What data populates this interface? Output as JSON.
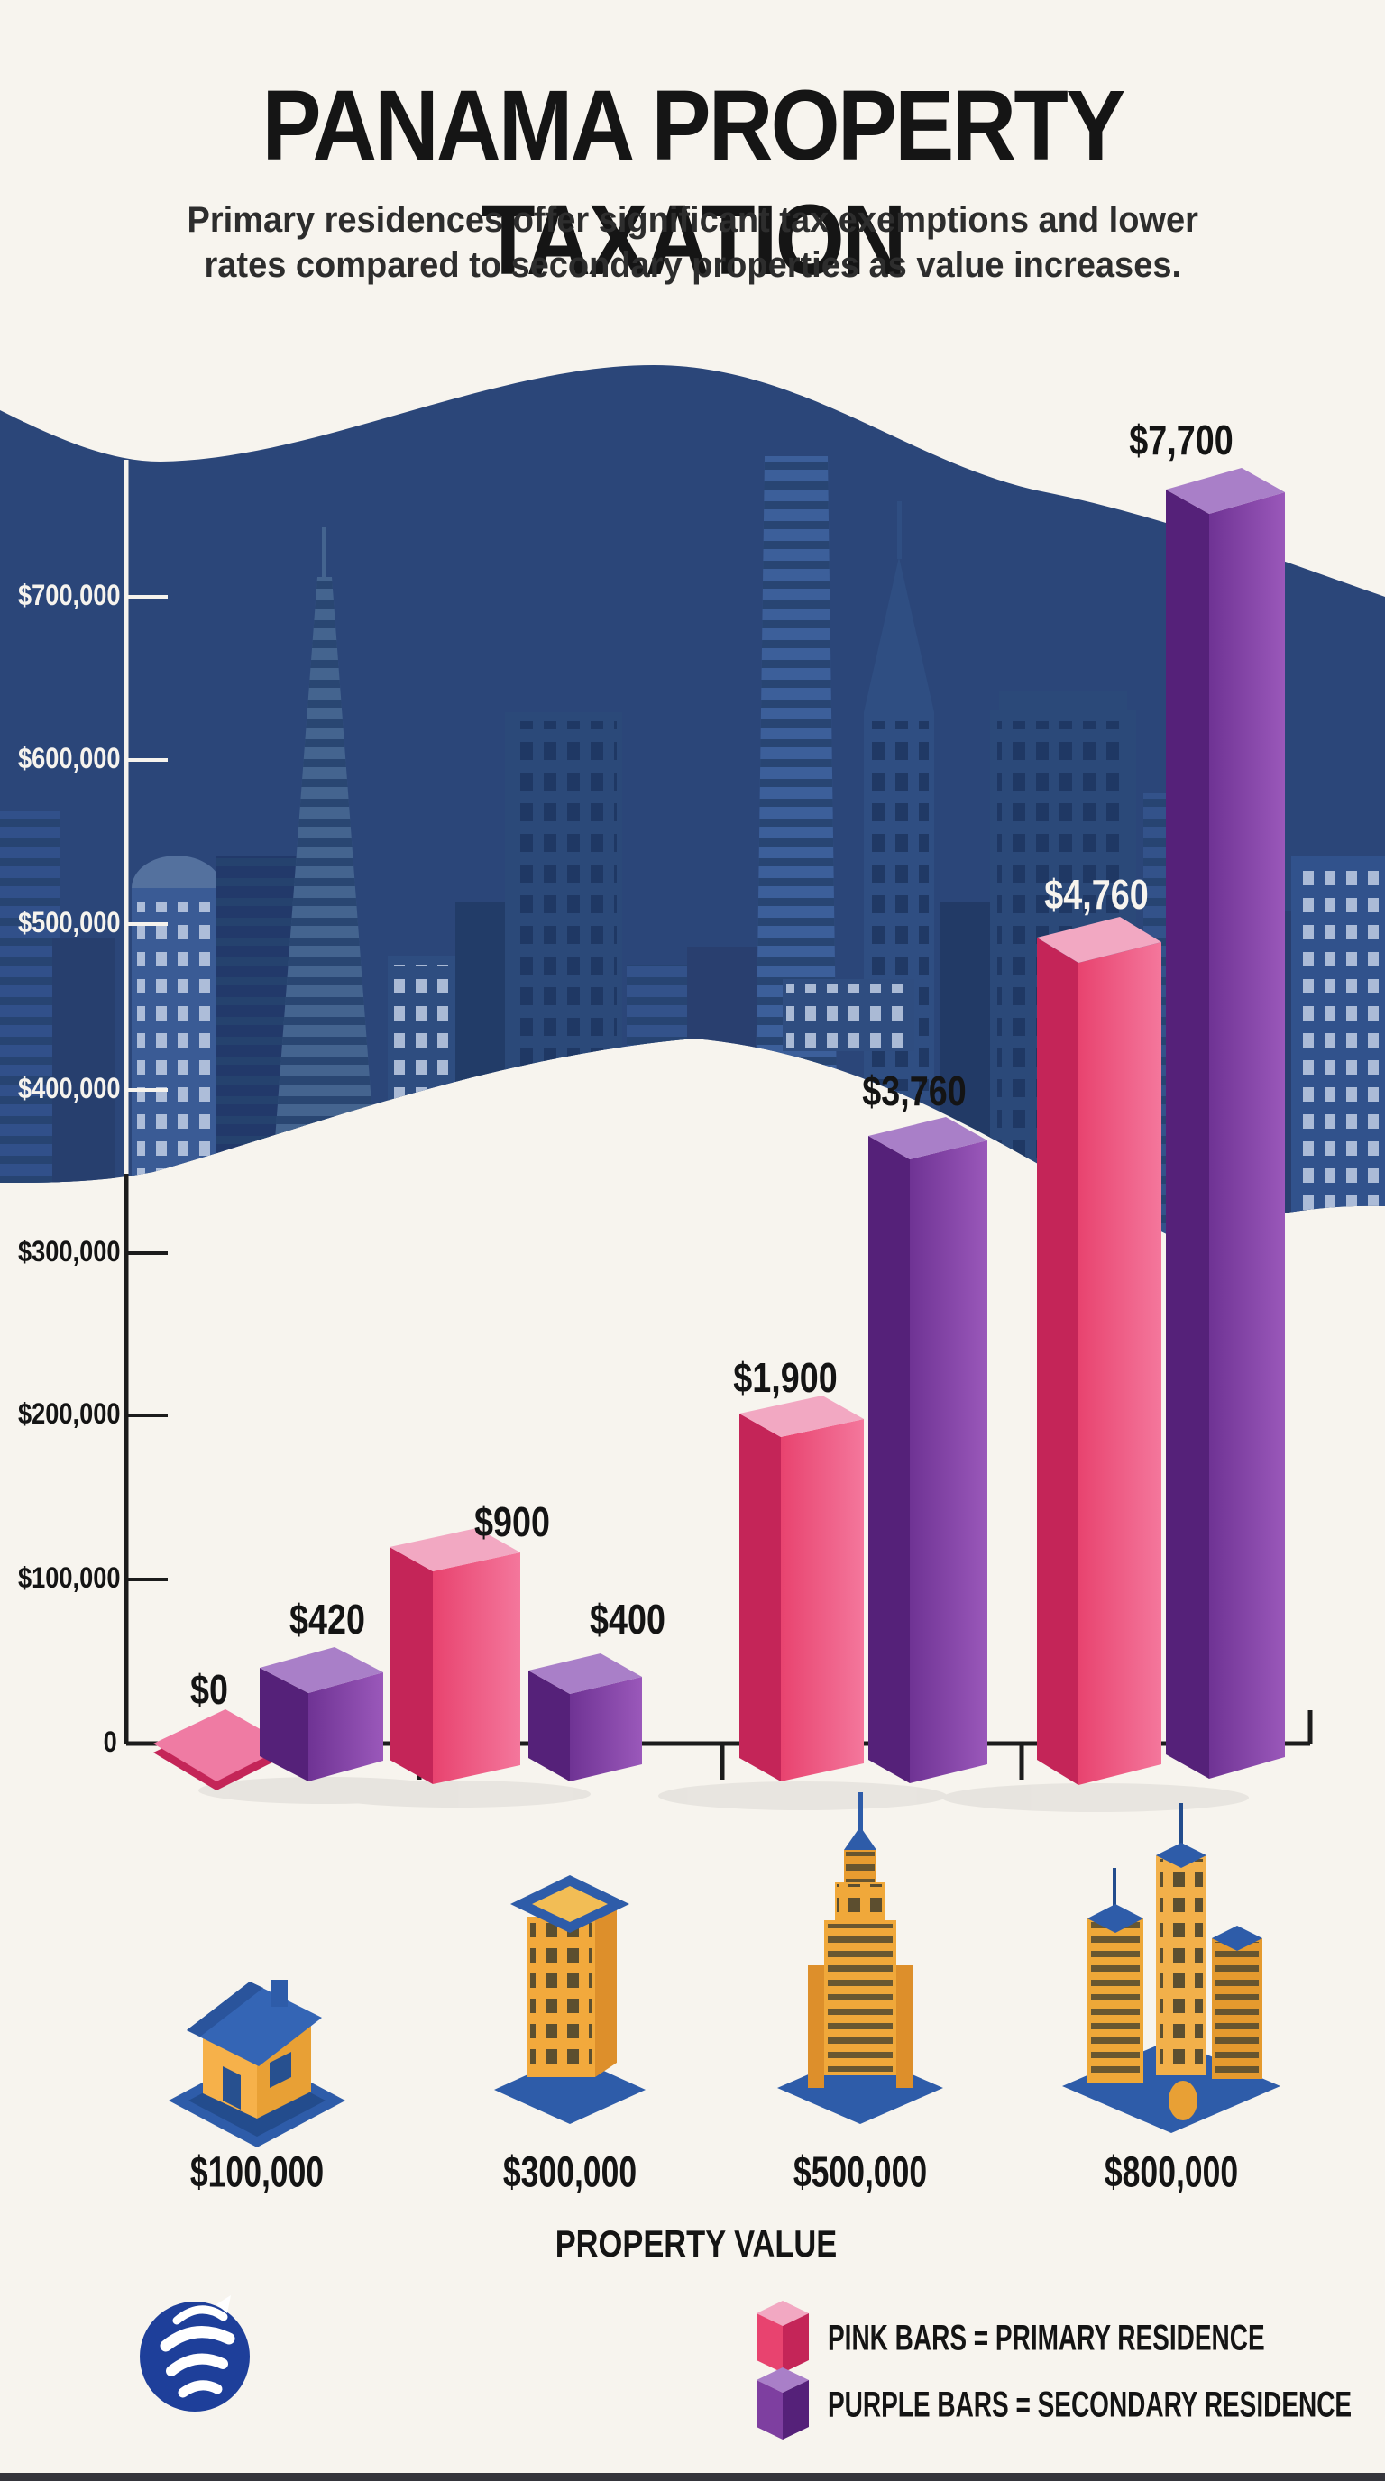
{
  "header": {
    "title": "PANAMA PROPERTY TAXATION",
    "subtitle_line1": "Primary residences offer significant tax exemptions and lower",
    "subtitle_line2": "rates compared to secondary properties as value increases."
  },
  "chart_data": {
    "type": "bar",
    "title": "PANAMA PROPERTY TAXATION",
    "xlabel": "PROPERTY VALUE",
    "ylabel": "",
    "ylim": [
      0,
      700000
    ],
    "grid": false,
    "y_axis_tick_labels": [
      "$700,000",
      "$600,000",
      "$500,000",
      "$400,000",
      "$300,000",
      "$200,000",
      "$100,000",
      "0"
    ],
    "categories": [
      "$100,000",
      "$300,000",
      "$500,000",
      "$800,000"
    ],
    "series": [
      {
        "name": "Primary residence",
        "color_name": "pink",
        "values": [
          0,
          900,
          1900,
          4760
        ],
        "value_labels": [
          "$0",
          "$900",
          "$1,900",
          "$4,760"
        ]
      },
      {
        "name": "Secondary residence",
        "color_name": "purple",
        "values": [
          420,
          400,
          3760,
          7700
        ],
        "value_labels": [
          "$420",
          "$400",
          "$3,760",
          "$7,700"
        ]
      }
    ],
    "legend_position": "bottom-right",
    "note": "3D bar artwork; bar heights are not drawn to the dollar axis scale"
  },
  "legend": {
    "pink_label": "PINK BARS = PRIMARY RESIDENCE",
    "purple_label": "PURPLE BARS = SECONDARY RESIDENCE"
  },
  "icons": {
    "category_1": "house-icon",
    "category_2": "apartment-building-icon",
    "category_3": "skyscraper-icon",
    "category_4": "skyscraper-cluster-icon",
    "footer": "dolphin-wave-logo-icon"
  },
  "colors": {
    "background": "#f7f4ee",
    "band_navy": "#2b4679",
    "building_light": "#44648f",
    "building_mid": "#33528a",
    "building_dark": "#223a66",
    "pink_face": "#e8436f",
    "pink_face_light": "#f4779c",
    "pink_side": "#c42558",
    "pink_top": "#f2a8c2",
    "pink_flat": "#ef7ba3",
    "purple_face": "#6f3394",
    "purple_face_light": "#9a58ba",
    "purple_side": "#552179",
    "purple_top": "#a97fc8",
    "axis_black": "#1c1c1c",
    "axis_white": "#f6f3ed",
    "text_black": "#141414",
    "text_white": "#f7f4ee",
    "logo_blue": "#1e3f9a",
    "icon_yellow": "#f0a83a",
    "icon_yellow_dark": "#dd8f2b",
    "icon_blue": "#2e5ca9",
    "icon_blue_dark": "#234c8d",
    "icon_window": "#4c452e"
  }
}
